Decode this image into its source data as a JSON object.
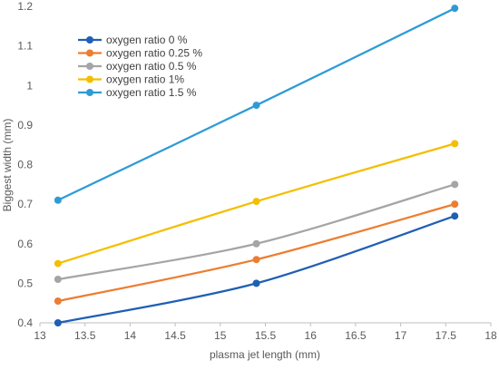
{
  "chart_data": {
    "type": "line",
    "title": "",
    "xlabel": "plasma jet length (mm)",
    "ylabel": "Biggest width (mm)",
    "xlim": [
      13,
      18
    ],
    "ylim": [
      0.4,
      1.2
    ],
    "x_ticks": [
      "13",
      "13.5",
      "14",
      "14.5",
      "15",
      "15.5",
      "16",
      "16.5",
      "17",
      "17.5",
      "18"
    ],
    "y_ticks": [
      "0.4",
      "0.5",
      "0.6",
      "0.7",
      "0.8",
      "0.9",
      "1",
      "1.1",
      "1.2"
    ],
    "grid": false,
    "legend_position": "top-left",
    "smooth": true,
    "x": [
      13.2,
      15.4,
      17.6
    ],
    "series": [
      {
        "name": "oxygen ratio 0 %",
        "color": "#1f5fb4",
        "values": [
          0.4,
          0.5,
          0.67
        ]
      },
      {
        "name": "oxygen ratio 0.25 %",
        "color": "#ed7d31",
        "values": [
          0.455,
          0.56,
          0.7
        ]
      },
      {
        "name": "oxygen ratio 0.5 %",
        "color": "#a5a5a5",
        "values": [
          0.51,
          0.6,
          0.75
        ]
      },
      {
        "name": "oxygen ratio 1%",
        "color": "#f5be00",
        "values": [
          0.55,
          0.707,
          0.853
        ]
      },
      {
        "name": "oxygen ratio 1.5 %",
        "color": "#2e9bd6",
        "values": [
          0.71,
          0.95,
          1.195
        ]
      }
    ]
  }
}
